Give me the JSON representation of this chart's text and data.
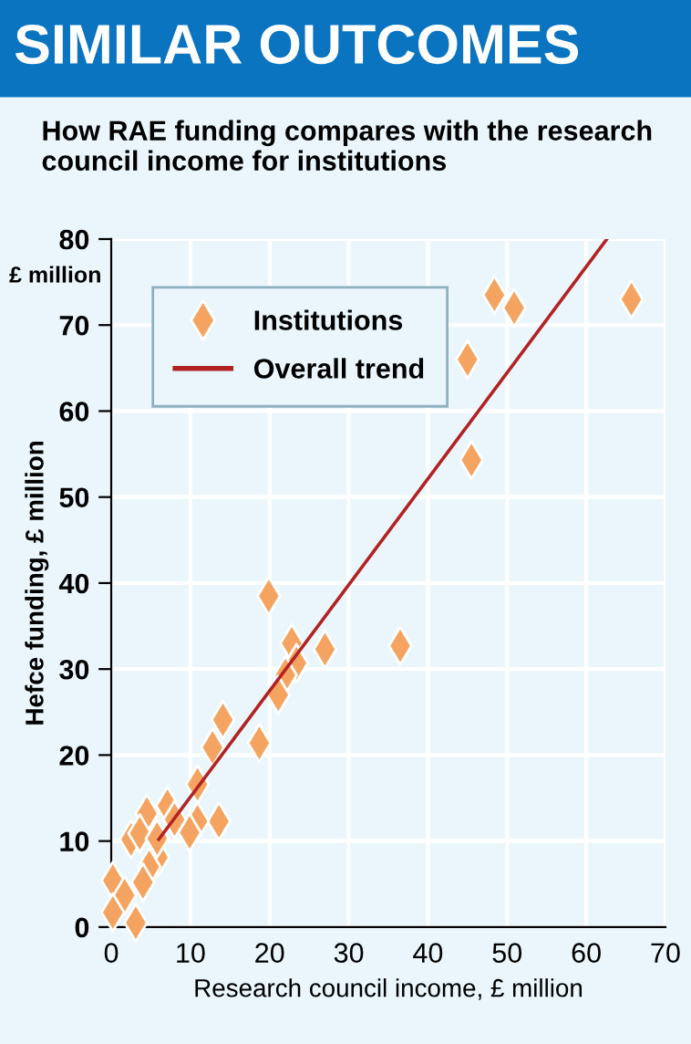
{
  "chart_data": {
    "type": "scatter",
    "title": "SIMILAR OUTCOMES",
    "subtitle": "How RAE funding compares with the research council income for institutions",
    "xlabel": "Research council income, £ million",
    "ylabel": "Hefce funding, £ million",
    "annotations": [
      "£ million"
    ],
    "xlim": [
      0,
      70
    ],
    "ylim": [
      0,
      80
    ],
    "xticks": [
      0,
      10,
      20,
      30,
      40,
      50,
      60,
      70
    ],
    "yticks": [
      0,
      10,
      20,
      30,
      40,
      50,
      60,
      70,
      80
    ],
    "grid": true,
    "legend": "top left",
    "series": [
      {
        "name": "Institutions",
        "marker": "diamond",
        "color": "#f4a460",
        "x": [
          19.9,
          22.8,
          27.0,
          36.5,
          23.4,
          22.0,
          21.1,
          14.1,
          12.8,
          18.7,
          10.9,
          13.6,
          10.9,
          9.9,
          7.1,
          8.0,
          4.5,
          2.5,
          3.6,
          5.9,
          4.8,
          4.0,
          0.2,
          1.7,
          0.2,
          3.1,
          5.8,
          45.0,
          45.5,
          48.4,
          50.9,
          65.7
        ],
        "values": [
          38.5,
          33.0,
          32.3,
          32.7,
          30.7,
          29.3,
          27.0,
          24.1,
          20.9,
          21.4,
          16.6,
          12.3,
          12.3,
          11.0,
          14.1,
          12.5,
          13.2,
          10.2,
          10.9,
          8.1,
          7.0,
          5.2,
          5.4,
          3.7,
          1.7,
          0.5,
          10.3,
          66.0,
          54.3,
          73.5,
          72.0,
          73.0
        ]
      },
      {
        "name": "Overall trend",
        "type": "line",
        "marker": "none",
        "line_style": "solid",
        "color": "#b22222",
        "x": [
          6.0,
          62.6
        ],
        "values": [
          10.2,
          80.0
        ]
      }
    ]
  }
}
